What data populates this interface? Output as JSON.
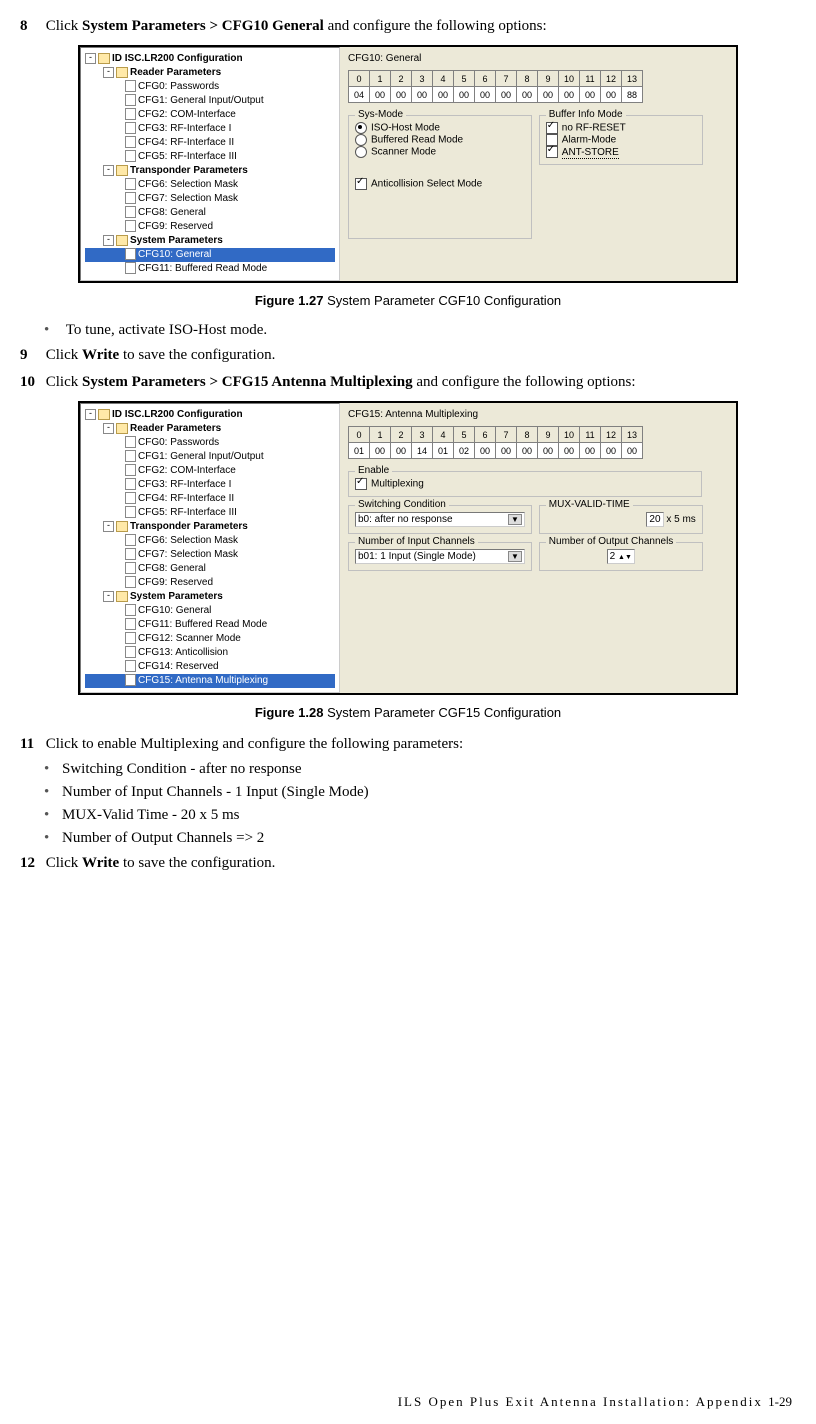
{
  "steps": {
    "s8": {
      "num": "8",
      "text_a": "Click ",
      "bold": "System Parameters > CFG10 General",
      "text_b": " and configure the following options:"
    },
    "s8_bullet": "To tune, activate ISO-Host mode.",
    "s9": {
      "num": "9",
      "text_a": "Click ",
      "bold": "Write",
      "text_b": " to save the configuration."
    },
    "s10": {
      "num": "10",
      "text_a": "Click ",
      "bold": "System Parameters > CFG15 Antenna Multiplexing",
      "text_b": " and configure the following options:"
    },
    "s11": {
      "num": "11",
      "text": "Click to enable Multiplexing and configure the following parameters:"
    },
    "s11_b1": "Switching Condition - after no response",
    "s11_b2": "Number of Input Channels - 1 Input (Single Mode)",
    "s11_b3": "MUX-Valid Time - 20 x 5 ms",
    "s11_b4": "Number of Output Channels => 2",
    "s12": {
      "num": "12",
      "text_a": "Click ",
      "bold": "Write",
      "text_b": " to save the configuration."
    }
  },
  "fig1": {
    "caption_bold": "Figure 1.27",
    "caption_rest": " System Parameter CGF10 Configuration",
    "tree_root": "ID ISC.LR200 Configuration",
    "tree_reader": "Reader Parameters",
    "tree_items_reader": [
      "CFG0: Passwords",
      "CFG1: General Input/Output",
      "CFG2: COM-Interface",
      "CFG3: RF-Interface I",
      "CFG4: RF-Interface II",
      "CFG5: RF-Interface III"
    ],
    "tree_transponder": "Transponder Parameters",
    "tree_items_trans": [
      "CFG6: Selection Mask",
      "CFG7: Selection Mask",
      "CFG8: General",
      "CFG9: Reserved"
    ],
    "tree_system": "System Parameters",
    "tree_items_sys": [
      "CFG10: General",
      "CFG11: Buffered Read Mode"
    ],
    "panel_title": "CFG10: General",
    "bytes_hdr": [
      "0",
      "1",
      "2",
      "3",
      "4",
      "5",
      "6",
      "7",
      "8",
      "9",
      "10",
      "11",
      "12",
      "13"
    ],
    "bytes_val": [
      "04",
      "00",
      "00",
      "00",
      "00",
      "00",
      "00",
      "00",
      "00",
      "00",
      "00",
      "00",
      "00",
      "88"
    ],
    "grp_sys": "Sys-Mode",
    "sys_opts": [
      "ISO-Host Mode",
      "Buffered Read Mode",
      "Scanner Mode"
    ],
    "sys_anti": "Anticollision Select Mode",
    "grp_buf": "Buffer Info Mode",
    "buf_opts": [
      "no RF-RESET",
      "Alarm-Mode",
      "ANT-STORE"
    ]
  },
  "fig2": {
    "caption_bold": "Figure 1.28",
    "caption_rest": " System Parameter CGF15 Configuration",
    "tree_items_sys": [
      "CFG10: General",
      "CFG11: Buffered Read Mode",
      "CFG12: Scanner Mode",
      "CFG13: Anticollision",
      "CFG14: Reserved",
      "CFG15: Antenna Multiplexing"
    ],
    "panel_title": "CFG15: Antenna Multiplexing",
    "bytes_val": [
      "01",
      "00",
      "00",
      "14",
      "01",
      "02",
      "00",
      "00",
      "00",
      "00",
      "00",
      "00",
      "00",
      "00"
    ],
    "grp_enable": "Enable",
    "enable_opt": "Multiplexing",
    "grp_switch": "Switching Condition",
    "switch_val": "b0: after no response",
    "grp_mux": "MUX-VALID-TIME",
    "mux_val": "20",
    "mux_unit": " x 5 ms",
    "grp_in": "Number of Input Channels",
    "in_val": "b01: 1 Input (Single Mode)",
    "grp_out": "Number of Output Channels",
    "out_val": "2"
  },
  "footer": {
    "text": "ILS Open Plus Exit Antenna Installation: Appendix",
    "page": "1-29"
  }
}
